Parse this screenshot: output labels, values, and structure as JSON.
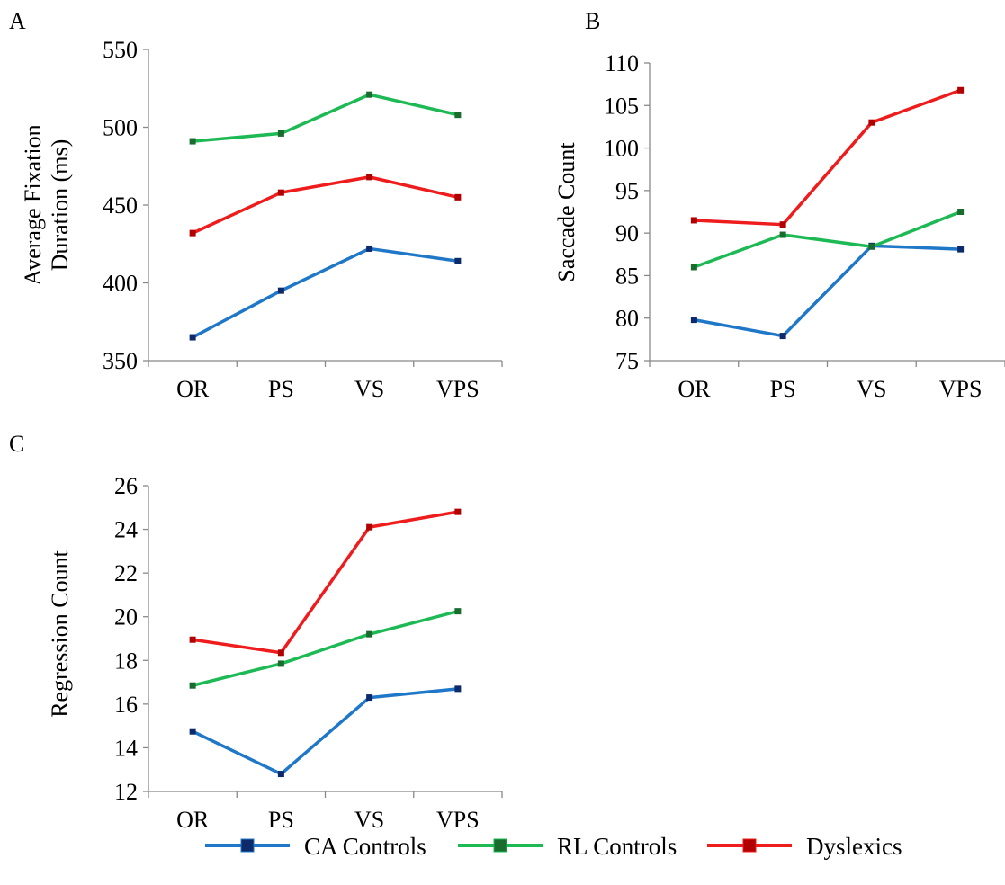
{
  "legend": [
    {
      "name": "CA Controls",
      "line_color": "#1F77C8",
      "marker_color": "#0D2B6B"
    },
    {
      "name": "RL Controls",
      "line_color": "#1DB954",
      "marker_color": "#1A6B2E"
    },
    {
      "name": "Dyslexics",
      "line_color": "#EE1C1C",
      "marker_color": "#B00000"
    }
  ],
  "chart_data": [
    {
      "panel": "A",
      "type": "line",
      "categories": [
        "OR",
        "PS",
        "VS",
        "VPS"
      ],
      "ylabel_lines": [
        "Average Fixation",
        "Duration (ms)"
      ],
      "ylim": [
        350,
        550
      ],
      "yticks": [
        "350",
        "400",
        "450",
        "500",
        "550"
      ],
      "series": [
        {
          "name": "CA Controls",
          "values": [
            365,
            395,
            422,
            414
          ]
        },
        {
          "name": "RL Controls",
          "values": [
            491,
            496,
            521,
            508
          ]
        },
        {
          "name": "Dyslexics",
          "values": [
            432,
            458,
            468,
            455
          ]
        }
      ]
    },
    {
      "panel": "B",
      "type": "line",
      "categories": [
        "OR",
        "PS",
        "VS",
        "VPS"
      ],
      "ylabel_lines": [
        "Saccade Count"
      ],
      "ylim": [
        75,
        110
      ],
      "yticks": [
        "75",
        "80",
        "85",
        "90",
        "95",
        "100",
        "105",
        "110"
      ],
      "series": [
        {
          "name": "CA Controls",
          "values": [
            79.8,
            77.9,
            88.5,
            88.1
          ]
        },
        {
          "name": "RL Controls",
          "values": [
            86.0,
            89.8,
            88.4,
            92.5
          ]
        },
        {
          "name": "Dyslexics",
          "values": [
            91.5,
            91.0,
            103.0,
            106.8
          ]
        }
      ]
    },
    {
      "panel": "C",
      "type": "line",
      "categories": [
        "OR",
        "PS",
        "VS",
        "VPS"
      ],
      "ylabel_lines": [
        "Regression Count"
      ],
      "ylim": [
        12,
        26
      ],
      "yticks": [
        "12",
        "14",
        "16",
        "18",
        "20",
        "22",
        "24",
        "26"
      ],
      "series": [
        {
          "name": "CA Controls",
          "values": [
            14.75,
            12.8,
            16.3,
            16.7
          ]
        },
        {
          "name": "RL Controls",
          "values": [
            16.85,
            17.85,
            19.2,
            20.25
          ]
        },
        {
          "name": "Dyslexics",
          "values": [
            18.95,
            18.35,
            24.1,
            24.8
          ]
        }
      ]
    }
  ]
}
